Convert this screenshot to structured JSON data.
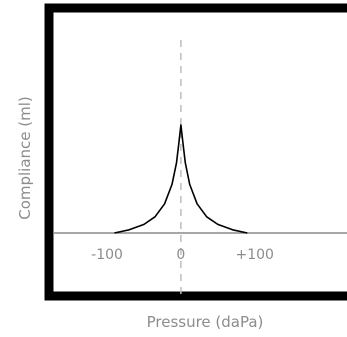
{
  "chart_data": {
    "type": "line",
    "title": "",
    "xlabel": "Pressure (daPa)",
    "ylabel": "Compliance (ml)",
    "x_tick_labels": [
      "-100",
      "0",
      "+100"
    ],
    "x_tick_values": [
      -100,
      0,
      100
    ],
    "xlim": [
      -245,
      225
    ],
    "ylim": [
      -0.4,
      1.4
    ],
    "series": [
      {
        "x": [
          -90,
          -70,
          -50,
          -35,
          -22,
          -12,
          -6,
          -3,
          0,
          3,
          6,
          12,
          22,
          35,
          50,
          70,
          90
        ],
        "y": [
          0,
          0.03,
          0.08,
          0.15,
          0.27,
          0.45,
          0.65,
          0.82,
          1.0,
          0.82,
          0.65,
          0.45,
          0.27,
          0.15,
          0.08,
          0.03,
          0
        ]
      }
    ],
    "reference_line_x": 0,
    "grid": false,
    "colors": {
      "frame": "#000000",
      "curve": "#000000",
      "baseline": "#8a8a8a",
      "dashed_line": "#bdbdbd",
      "label_text": "#8c8c8c"
    }
  }
}
